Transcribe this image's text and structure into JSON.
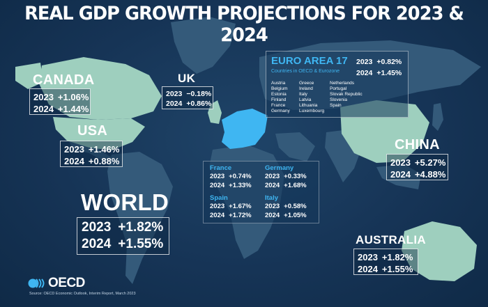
{
  "title": "REAL GDP GROWTH PROJECTIONS FOR 2023 & 2024",
  "colors": {
    "background": "#163456",
    "land": "#3a5f7f",
    "highlight": "#9ecfbe",
    "euro": "#3fb6f2",
    "text": "#ffffff"
  },
  "canada": {
    "label": "CANADA",
    "rows": [
      {
        "year": "2023",
        "value": "+1.06%"
      },
      {
        "year": "2024",
        "value": "+1.44%"
      }
    ]
  },
  "usa": {
    "label": "USA",
    "rows": [
      {
        "year": "2023",
        "value": "+1.46%"
      },
      {
        "year": "2024",
        "value": "+0.88%"
      }
    ]
  },
  "uk": {
    "label": "UK",
    "rows": [
      {
        "year": "2023",
        "value": "−0.18%"
      },
      {
        "year": "2024",
        "value": "+0.86%"
      }
    ]
  },
  "euro_area": {
    "label": "EURO AREA 17",
    "subtitle": "Countries in OECD & Eurozone",
    "col1": [
      "Austria",
      "Belgium",
      "Estonia",
      "Finland",
      "France",
      "Germany"
    ],
    "col2": [
      "Greece",
      "Ireland",
      "Italy",
      "Latvia",
      "Lithuania",
      "Luxembourg"
    ],
    "col3": [
      "Netherlands",
      "Portugal",
      "Slovak Republic",
      "Slovenia",
      "Spain"
    ],
    "rows": [
      {
        "year": "2023",
        "value": "+0.82%"
      },
      {
        "year": "2024",
        "value": "+1.45%"
      }
    ]
  },
  "countries": {
    "france": {
      "name": "France",
      "rows": [
        {
          "year": "2023",
          "value": "+0.74%"
        },
        {
          "year": "2024",
          "value": "+1.33%"
        }
      ]
    },
    "germany": {
      "name": "Germany",
      "rows": [
        {
          "year": "2023",
          "value": "+0.33%"
        },
        {
          "year": "2024",
          "value": "+1.68%"
        }
      ]
    },
    "spain": {
      "name": "Spain",
      "rows": [
        {
          "year": "2023",
          "value": "+1.67%"
        },
        {
          "year": "2024",
          "value": "+1.72%"
        }
      ]
    },
    "italy": {
      "name": "Italy",
      "rows": [
        {
          "year": "2023",
          "value": "+0.58%"
        },
        {
          "year": "2024",
          "value": "+1.05%"
        }
      ]
    }
  },
  "china": {
    "label": "CHINA",
    "rows": [
      {
        "year": "2023",
        "value": "+5.27%"
      },
      {
        "year": "2024",
        "value": "+4.88%"
      }
    ]
  },
  "world": {
    "label": "WORLD",
    "rows": [
      {
        "year": "2023",
        "value": "+1.82%"
      },
      {
        "year": "2024",
        "value": "+1.55%"
      }
    ]
  },
  "australia": {
    "label": "AUSTRALIA",
    "rows": [
      {
        "year": "2023",
        "value": "+1.82%"
      },
      {
        "year": "2024",
        "value": "+1.55%"
      }
    ]
  },
  "footer": {
    "logo_text": "OECD",
    "source": "Source: OECD Economic Outlook, Interim Report, March 2023"
  }
}
